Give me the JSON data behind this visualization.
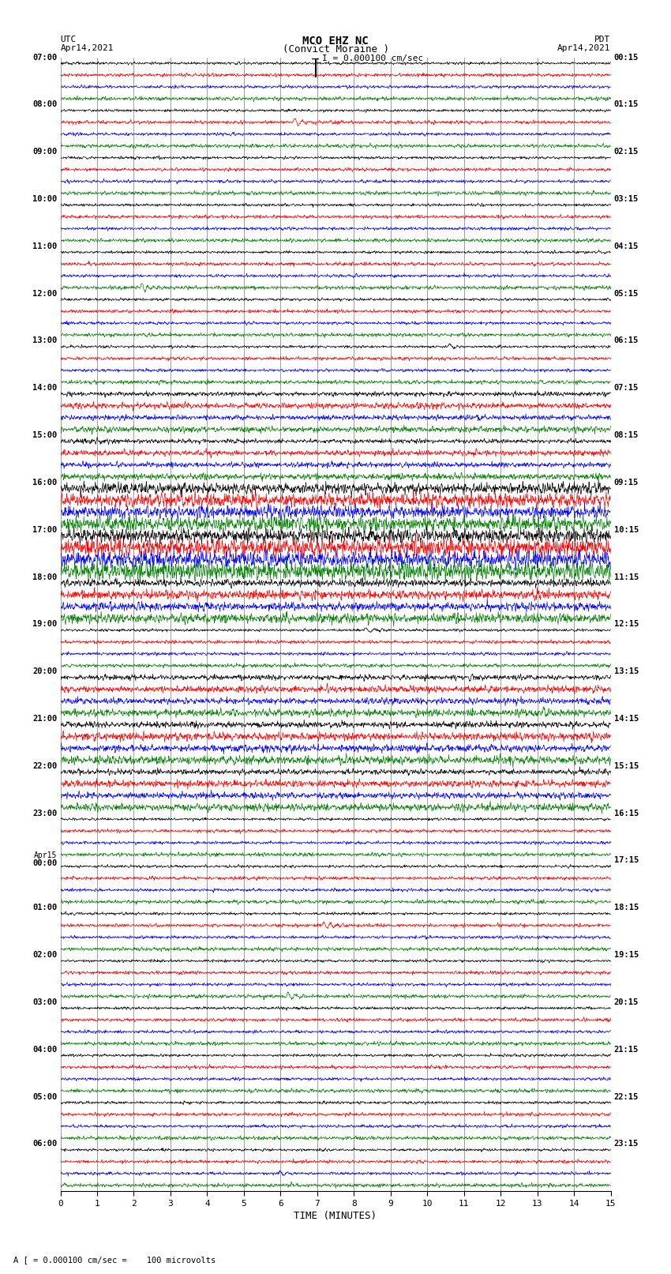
{
  "title_line1": "MCO EHZ NC",
  "title_line2": "(Convict Moraine )",
  "scale_text": "I = 0.000100 cm/sec",
  "footer_text": "A [ = 0.000100 cm/sec =    100 microvolts",
  "utc_label": "UTC",
  "pdt_label": "PDT",
  "date_left": "Apr14,2021",
  "date_right": "Apr14,2021",
  "xlabel": "TIME (MINUTES)",
  "bg_color": "#ffffff",
  "trace_colors": [
    "black",
    "red",
    "blue",
    "green"
  ],
  "left_times": [
    "07:00",
    "08:00",
    "09:00",
    "10:00",
    "11:00",
    "12:00",
    "13:00",
    "14:00",
    "15:00",
    "16:00",
    "17:00",
    "18:00",
    "19:00",
    "20:00",
    "21:00",
    "22:00",
    "23:00",
    "Apr15\n00:00",
    "01:00",
    "02:00",
    "03:00",
    "04:00",
    "05:00",
    "06:00"
  ],
  "right_times": [
    "00:15",
    "01:15",
    "02:15",
    "03:15",
    "04:15",
    "05:15",
    "06:15",
    "07:15",
    "08:15",
    "09:15",
    "10:15",
    "11:15",
    "12:15",
    "13:15",
    "14:15",
    "15:15",
    "16:15",
    "17:15",
    "18:15",
    "19:15",
    "20:15",
    "21:15",
    "22:15",
    "23:15"
  ],
  "n_hours": 24,
  "n_traces_per_hour": 4,
  "minutes": 15,
  "noise_base": 0.025,
  "noise_vary": true,
  "seed": 123
}
